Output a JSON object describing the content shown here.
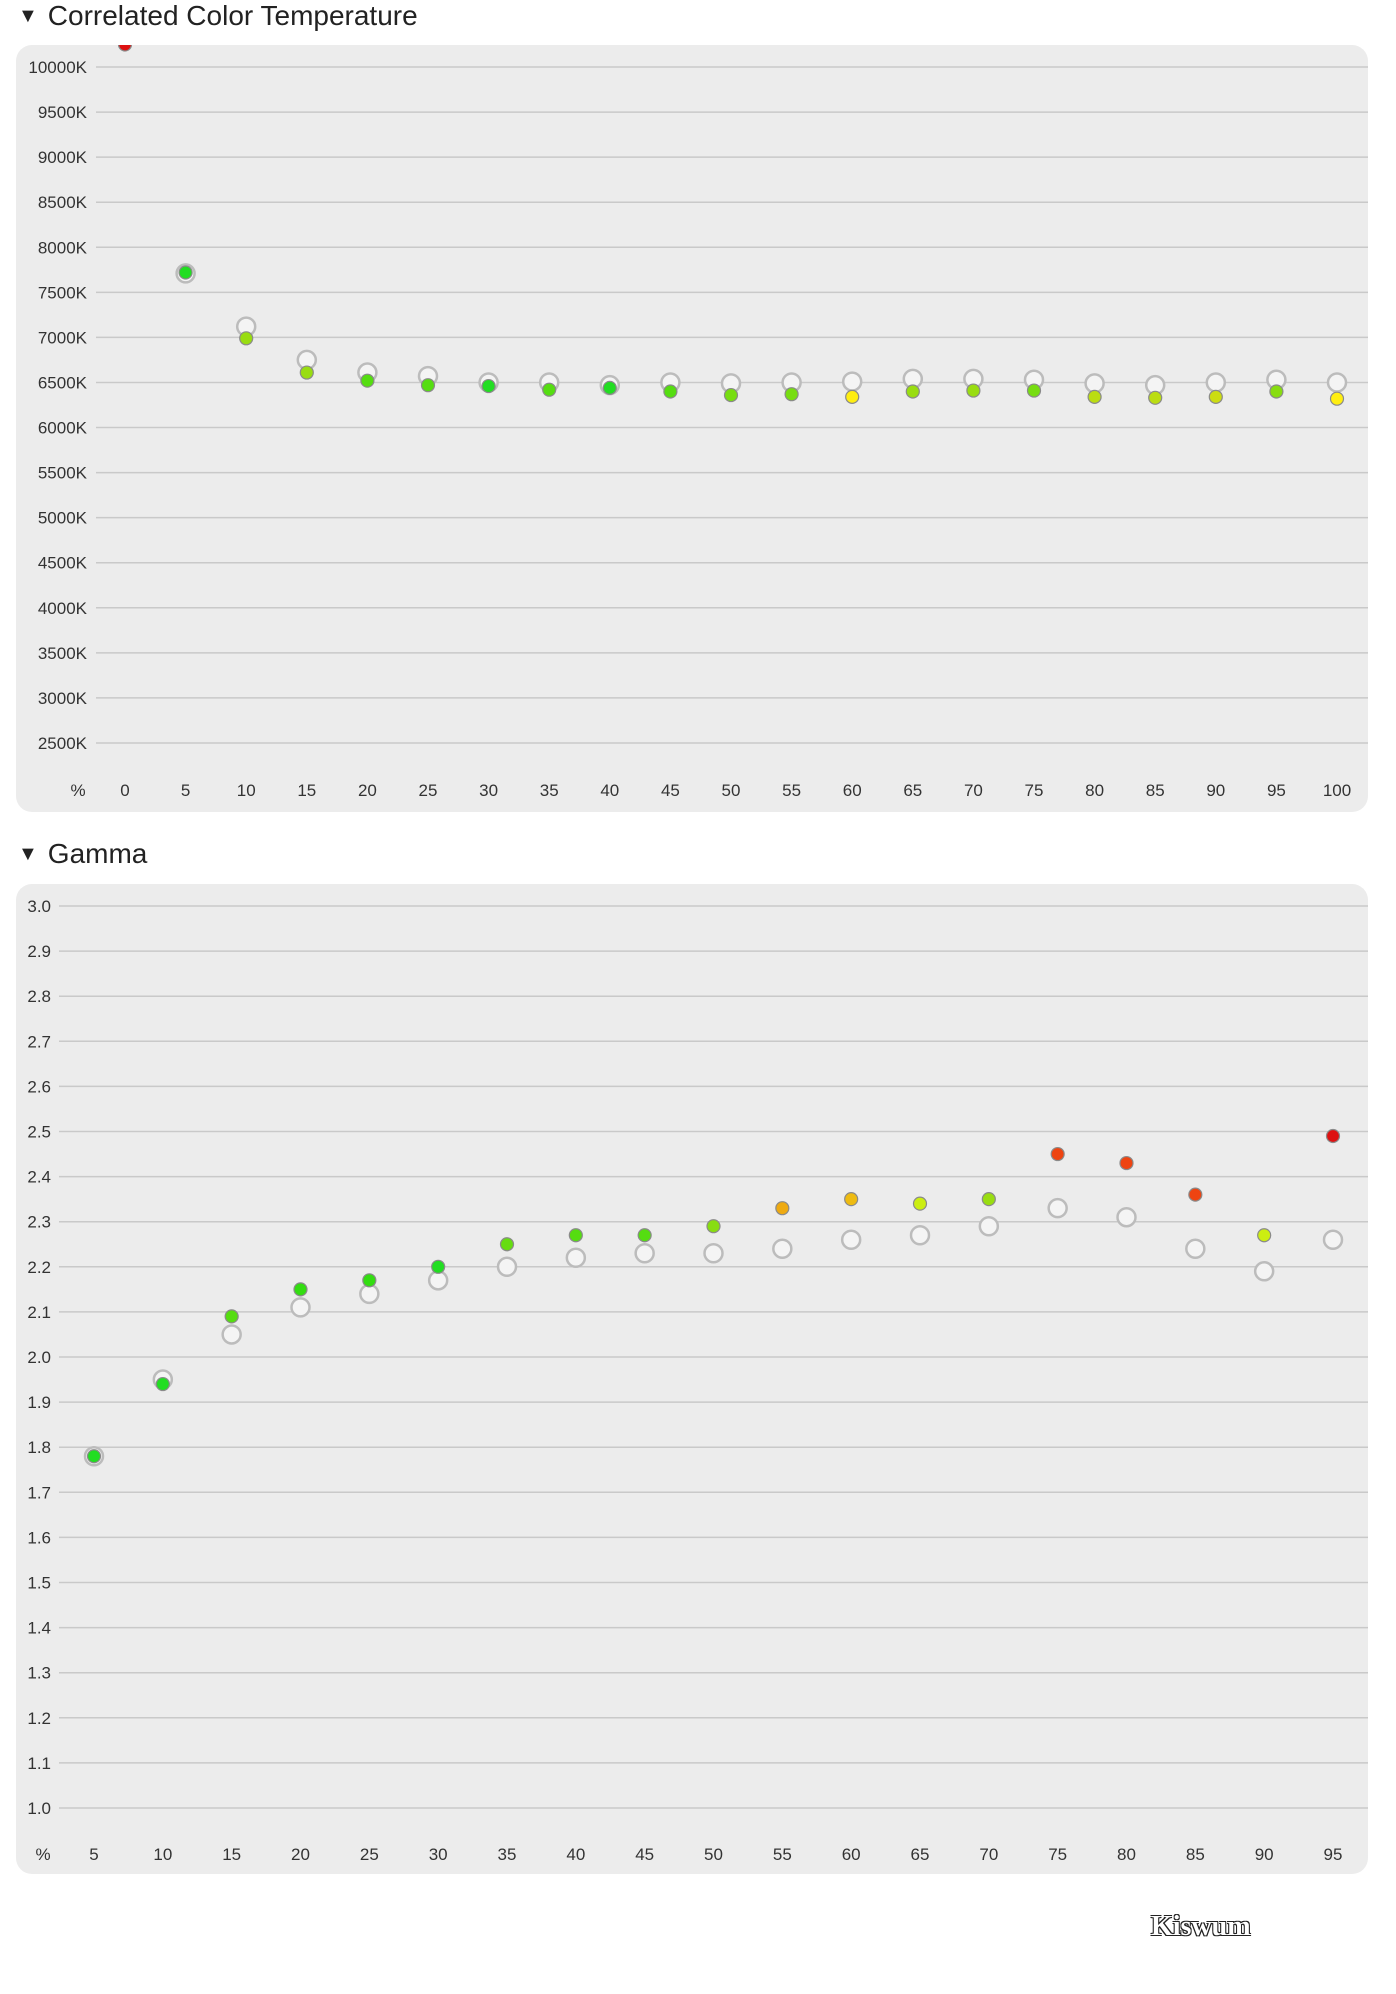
{
  "cct_section": {
    "title": "Correlated Color Temperature",
    "toggle": "▼"
  },
  "gamma_section": {
    "title": "Gamma",
    "toggle": "▼"
  },
  "watermark": "Kiswum",
  "chart_data": [
    {
      "type": "scatter",
      "title": "Correlated Color Temperature",
      "x_unit_label": "%",
      "x_ticks": [
        "0",
        "5",
        "10",
        "15",
        "20",
        "25",
        "30",
        "35",
        "40",
        "45",
        "50",
        "55",
        "60",
        "65",
        "70",
        "75",
        "80",
        "85",
        "90",
        "95",
        "100"
      ],
      "y_ticks": [
        "2500K",
        "3000K",
        "3500K",
        "4000K",
        "4500K",
        "5000K",
        "5500K",
        "6000K",
        "6500K",
        "7000K",
        "7500K",
        "8000K",
        "8500K",
        "9000K",
        "9500K",
        "10000K"
      ],
      "ylim": [
        2500,
        10000
      ],
      "grid": true,
      "series": [
        {
          "role": "target",
          "style": "hollow-gray",
          "x": [
            5,
            10,
            15,
            20,
            25,
            30,
            35,
            40,
            45,
            50,
            55,
            60,
            65,
            70,
            75,
            80,
            85,
            90,
            95,
            100
          ],
          "y": [
            7710,
            7120,
            6750,
            6610,
            6570,
            6500,
            6500,
            6470,
            6500,
            6490,
            6500,
            6510,
            6540,
            6540,
            6530,
            6490,
            6470,
            6500,
            6530,
            6500
          ]
        },
        {
          "role": "measured",
          "style": "filled-colored",
          "x": [
            0,
            5,
            10,
            15,
            20,
            25,
            30,
            35,
            40,
            45,
            50,
            55,
            60,
            65,
            70,
            75,
            80,
            85,
            90,
            95,
            100
          ],
          "y": [
            10250,
            7720,
            6990,
            6610,
            6520,
            6470,
            6460,
            6420,
            6440,
            6400,
            6360,
            6370,
            6340,
            6400,
            6410,
            6410,
            6340,
            6330,
            6340,
            6400,
            6320
          ],
          "colors": [
            "#dd1111",
            "#22dd22",
            "#99dd11",
            "#99dd11",
            "#55dd11",
            "#55dd11",
            "#22dd22",
            "#55dd11",
            "#22dd22",
            "#55dd11",
            "#77dd11",
            "#77dd11",
            "#ffee11",
            "#99dd11",
            "#99dd11",
            "#77dd11",
            "#bbdd11",
            "#bbdd11",
            "#ccdd11",
            "#88dd11",
            "#ffee11"
          ]
        }
      ]
    },
    {
      "type": "scatter",
      "title": "Gamma",
      "x_unit_label": "%",
      "x_ticks": [
        "5",
        "10",
        "15",
        "20",
        "25",
        "30",
        "35",
        "40",
        "45",
        "50",
        "55",
        "60",
        "65",
        "70",
        "75",
        "80",
        "85",
        "90",
        "95"
      ],
      "y_ticks": [
        "1.0",
        "1.1",
        "1.2",
        "1.3",
        "1.4",
        "1.5",
        "1.6",
        "1.7",
        "1.8",
        "1.9",
        "2.0",
        "2.1",
        "2.2",
        "2.3",
        "2.4",
        "2.5",
        "2.6",
        "2.7",
        "2.8",
        "2.9",
        "3.0"
      ],
      "ylim": [
        1.0,
        3.0
      ],
      "grid": true,
      "series": [
        {
          "role": "target",
          "style": "hollow-gray",
          "x": [
            5,
            10,
            15,
            20,
            25,
            30,
            35,
            40,
            45,
            50,
            55,
            60,
            65,
            70,
            75,
            80,
            85,
            90,
            95
          ],
          "y": [
            1.78,
            1.95,
            2.05,
            2.11,
            2.14,
            2.17,
            2.2,
            2.22,
            2.23,
            2.23,
            2.24,
            2.26,
            2.27,
            2.29,
            2.33,
            2.31,
            2.24,
            2.19,
            2.26
          ]
        },
        {
          "role": "measured",
          "style": "filled-colored",
          "x": [
            5,
            10,
            15,
            20,
            25,
            30,
            35,
            40,
            45,
            50,
            55,
            60,
            65,
            70,
            75,
            80,
            85,
            90,
            95
          ],
          "y": [
            1.78,
            1.94,
            2.09,
            2.15,
            2.17,
            2.2,
            2.25,
            2.27,
            2.27,
            2.29,
            2.33,
            2.35,
            2.34,
            2.35,
            2.45,
            2.43,
            2.36,
            2.27,
            2.49
          ],
          "colors": [
            "#22dd22",
            "#22dd22",
            "#55dd11",
            "#33dd11",
            "#33dd11",
            "#22dd22",
            "#66dd11",
            "#55dd11",
            "#55dd11",
            "#88dd11",
            "#eeaa11",
            "#eebb11",
            "#ccee11",
            "#99dd11",
            "#ee4411",
            "#ee4411",
            "#ee4411",
            "#ccee11",
            "#dd1111"
          ]
        }
      ]
    }
  ]
}
